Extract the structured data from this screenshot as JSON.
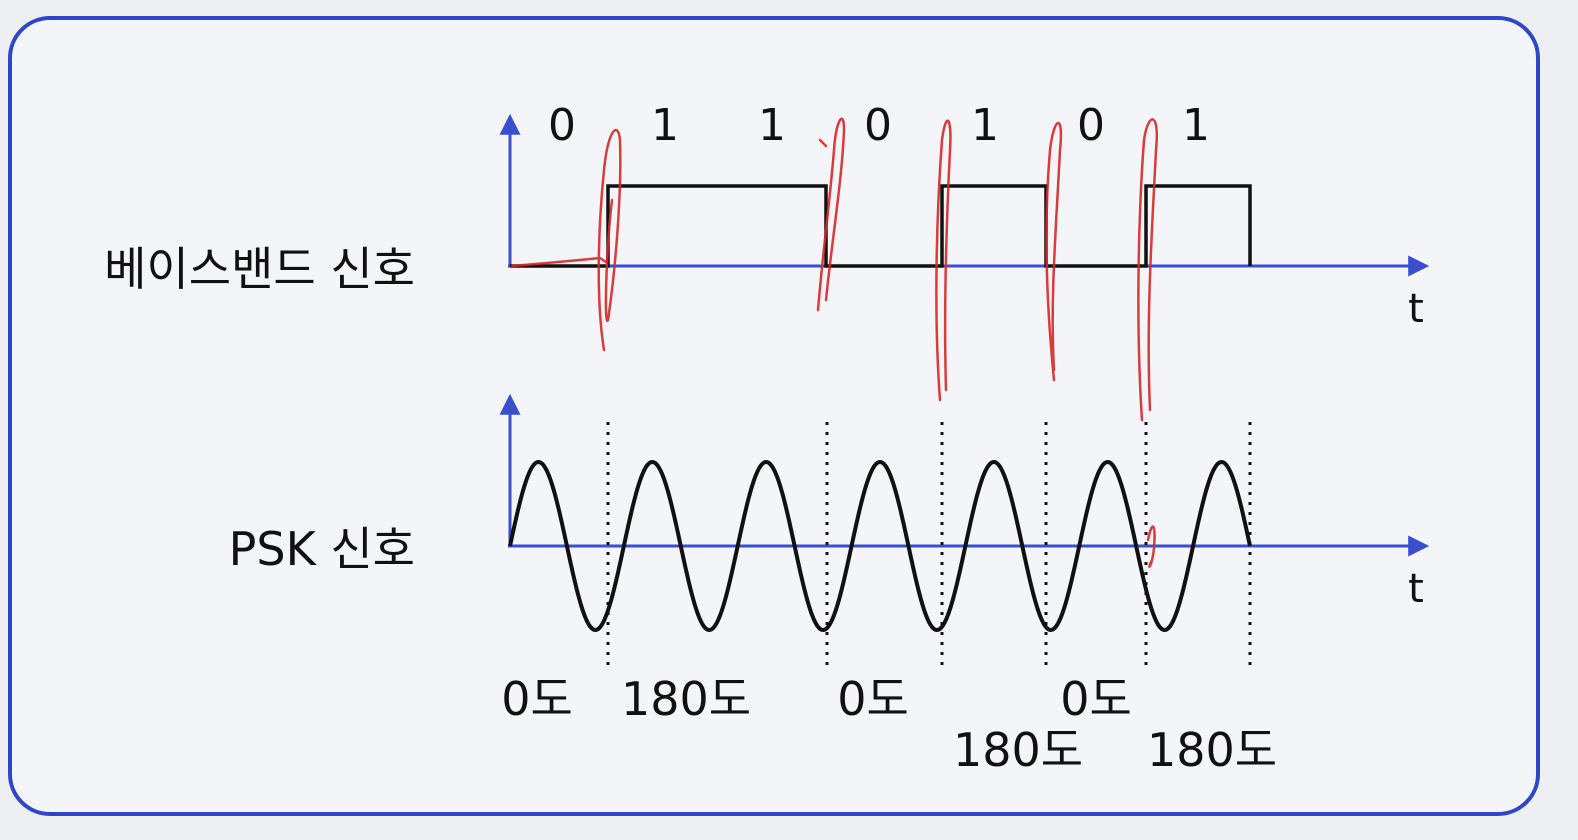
{
  "labels": {
    "baseband": "베이스밴드 신호",
    "psk": "PSK 신호",
    "t_top": "t",
    "t_bottom": "t"
  },
  "bits": [
    "0",
    "1",
    "1",
    "0",
    "1",
    "0",
    "1"
  ],
  "phase_labels_row1": [
    "0도",
    "180도",
    "0도",
    "0도"
  ],
  "phase_labels_row2": [
    "180도",
    "180도"
  ],
  "colors": {
    "frame": "#2f46c9",
    "axis": "#3a4fd0",
    "signal": "#111111",
    "annotation": "#d62828",
    "background": "#f4f5f9"
  }
}
